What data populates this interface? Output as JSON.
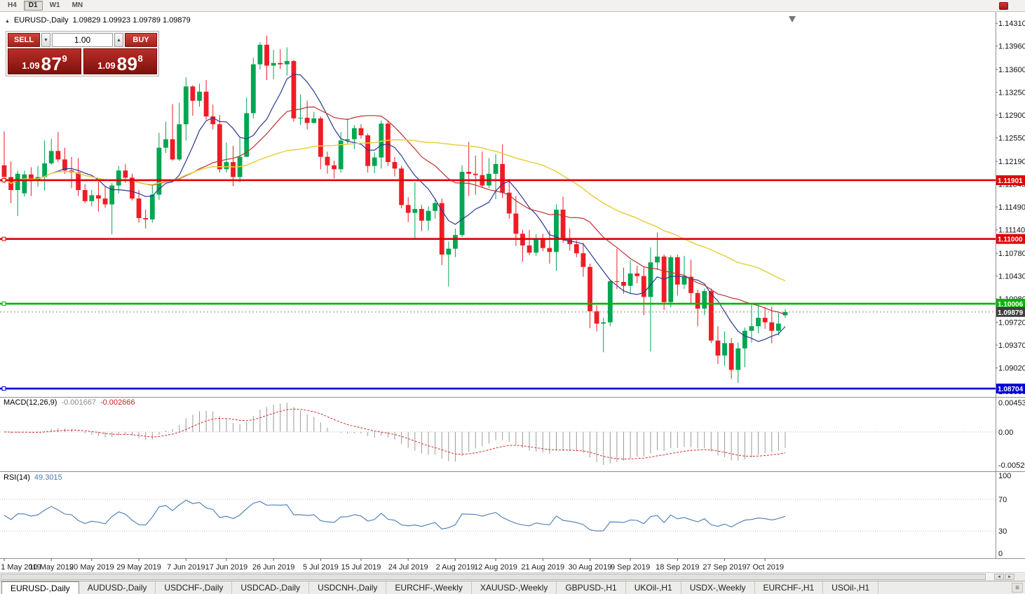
{
  "toolbar": {
    "timeframes": [
      {
        "label": "H4",
        "active": false
      },
      {
        "label": "D1",
        "active": true
      },
      {
        "label": "W1",
        "active": false
      },
      {
        "label": "MN",
        "active": false
      }
    ]
  },
  "chart": {
    "title_symbol": "EURUSD-,Daily",
    "ohlc_display": "1.09829 1.09923 1.09789 1.09879",
    "open": "1.09829",
    "high": "1.09923",
    "low": "1.09789",
    "close": "1.09879"
  },
  "trade_panel": {
    "sell_label": "SELL",
    "buy_label": "BUY",
    "volume": "1.00",
    "sell_price_int": "1.09",
    "sell_price_pips": "87",
    "sell_price_point": "9",
    "buy_price_int": "1.09",
    "buy_price_pips": "89",
    "buy_price_point": "8"
  },
  "macd_panel": {
    "label": "MACD(12,26,9)",
    "value": "-0.001667",
    "signal": "-0.002666",
    "axis": [
      "0.004536",
      "0.00",
      "-0.005205"
    ]
  },
  "rsi_panel": {
    "label": "RSI(14)",
    "value": "49.3015",
    "axis": [
      "100",
      "70",
      "30",
      "0"
    ]
  },
  "icons": {
    "panel_toggle": "▲",
    "volume_down": "▼",
    "volume_up": "▲",
    "left": "◄",
    "right": "►",
    "grip": "≡"
  },
  "tabs": [
    {
      "label": "EURUSD-,Daily",
      "active": true
    },
    {
      "label": "AUDUSD-,Daily",
      "active": false
    },
    {
      "label": "USDCHF-,Daily",
      "active": false
    },
    {
      "label": "USDCAD-,Daily",
      "active": false
    },
    {
      "label": "USDCNH-,Daily",
      "active": false
    },
    {
      "label": "EURCHF-,Weekly",
      "active": false
    },
    {
      "label": "XAUUSD-,Weekly",
      "active": false
    },
    {
      "label": "GBPUSD-,H1",
      "active": false
    },
    {
      "label": "UKOil-,H1",
      "active": false
    },
    {
      "label": "USDX-,Weekly",
      "active": false
    },
    {
      "label": "EURCHF-,H1",
      "active": false
    },
    {
      "label": "USOil-,H1",
      "active": false
    }
  ],
  "chart_data": {
    "type": "candlestick",
    "symbol": "EURUSD-",
    "timeframe": "Daily",
    "ylim": [
      1.08575,
      1.14484
    ],
    "colors": {
      "bull": "#00a651",
      "bear": "#ee1c25"
    },
    "price_axis_ticks": [
      1.1431,
      1.1396,
      1.136,
      1.1325,
      1.129,
      1.1255,
      1.1219,
      1.1184,
      1.1149,
      1.1114,
      1.1078,
      1.1043,
      1.1008,
      1.0972,
      1.0937,
      1.0902,
      1.0866
    ],
    "hlines": [
      {
        "price": 1.11901,
        "label": "1.11901",
        "color": "#e00000"
      },
      {
        "price": 1.11,
        "label": "1.11000",
        "color": "#e00000"
      },
      {
        "price": 1.10006,
        "label": "1.10006",
        "color": "#00b400"
      },
      {
        "price": 1.08704,
        "label": "1.08704",
        "color": "#0000d8"
      }
    ],
    "current_price": {
      "price": 1.09879,
      "label": "1.09879",
      "box_color": "#3f3f3f"
    },
    "moving_averages": [
      {
        "period": 8,
        "color": "#2a3990",
        "width": 1.2
      },
      {
        "period": 20,
        "color": "#c03030",
        "width": 1.2
      },
      {
        "period": 45,
        "color": "#e9cf3e",
        "width": 1.5
      }
    ],
    "indicators": {
      "macd": {
        "fast": 12,
        "slow": 26,
        "signal_period": 9,
        "histogram_color": "#9a9a9a",
        "signal_color": "#d22f2f"
      },
      "rsi": {
        "period": 14,
        "color": "#4a7ab5",
        "levels": [
          30,
          70
        ]
      }
    },
    "x_ticks": [
      {
        "label": "1 May 2019",
        "bar": 0
      },
      {
        "label": "10 May 2019",
        "bar": 7
      },
      {
        "label": "20 May 2019",
        "bar": 13
      },
      {
        "label": "29 May 2019",
        "bar": 20
      },
      {
        "label": "7 Jun 2019",
        "bar": 27
      },
      {
        "label": "17 Jun 2019",
        "bar": 33
      },
      {
        "label": "26 Jun 2019",
        "bar": 40
      },
      {
        "label": "5 Jul 2019",
        "bar": 47
      },
      {
        "label": "15 Jul 2019",
        "bar": 53
      },
      {
        "label": "24 Jul 2019",
        "bar": 60
      },
      {
        "label": "2 Aug 2019",
        "bar": 67
      },
      {
        "label": "12 Aug 2019",
        "bar": 73
      },
      {
        "label": "21 Aug 2019",
        "bar": 80
      },
      {
        "label": "30 Aug 2019",
        "bar": 87
      },
      {
        "label": "9 Sep 2019",
        "bar": 93
      },
      {
        "label": "18 Sep 2019",
        "bar": 100
      },
      {
        "label": "27 Sep 2019",
        "bar": 107
      },
      {
        "label": "7 Oct 2019",
        "bar": 113
      }
    ],
    "candles": [
      [
        1.1213,
        1.1265,
        1.1186,
        1.1195
      ],
      [
        1.1195,
        1.1219,
        1.1155,
        1.1175
      ],
      [
        1.1175,
        1.1205,
        1.1135,
        1.12
      ],
      [
        1.117,
        1.1205,
        1.1165,
        1.1199
      ],
      [
        1.1199,
        1.121,
        1.1166,
        1.119
      ],
      [
        1.119,
        1.1212,
        1.118,
        1.1195
      ],
      [
        1.1195,
        1.1251,
        1.1174,
        1.1216
      ],
      [
        1.1216,
        1.1254,
        1.1214,
        1.1235
      ],
      [
        1.1235,
        1.1264,
        1.1218,
        1.1222
      ],
      [
        1.1222,
        1.124,
        1.12,
        1.1205
      ],
      [
        1.1205,
        1.1226,
        1.1178,
        1.1202
      ],
      [
        1.1202,
        1.1224,
        1.1166,
        1.1175
      ],
      [
        1.1175,
        1.1184,
        1.1155,
        1.1158
      ],
      [
        1.1158,
        1.1175,
        1.115,
        1.1167
      ],
      [
        1.1167,
        1.1188,
        1.1142,
        1.1162
      ],
      [
        1.1162,
        1.118,
        1.1148,
        1.1153
      ],
      [
        1.1153,
        1.1186,
        1.1107,
        1.1182
      ],
      [
        1.1182,
        1.1212,
        1.117,
        1.1205
      ],
      [
        1.1205,
        1.1215,
        1.1186,
        1.1194
      ],
      [
        1.1194,
        1.12,
        1.1159,
        1.1162
      ],
      [
        1.1162,
        1.1175,
        1.1125,
        1.1132
      ],
      [
        1.1132,
        1.1145,
        1.1116,
        1.113
      ],
      [
        1.113,
        1.1182,
        1.1125,
        1.1168
      ],
      [
        1.1168,
        1.1263,
        1.116,
        1.124
      ],
      [
        1.124,
        1.128,
        1.1232,
        1.1253
      ],
      [
        1.1253,
        1.1307,
        1.122,
        1.1222
      ],
      [
        1.1222,
        1.1309,
        1.122,
        1.1276
      ],
      [
        1.1276,
        1.1348,
        1.1251,
        1.1334
      ],
      [
        1.1334,
        1.1336,
        1.1289,
        1.1312
      ],
      [
        1.1312,
        1.1338,
        1.1303,
        1.1326
      ],
      [
        1.1326,
        1.1344,
        1.1283,
        1.1288
      ],
      [
        1.1288,
        1.1306,
        1.1268,
        1.1276
      ],
      [
        1.1276,
        1.129,
        1.1202,
        1.1207
      ],
      [
        1.1207,
        1.1248,
        1.1202,
        1.1218
      ],
      [
        1.1218,
        1.1243,
        1.1181,
        1.1195
      ],
      [
        1.1195,
        1.1255,
        1.1187,
        1.1226
      ],
      [
        1.1226,
        1.1317,
        1.1226,
        1.1293
      ],
      [
        1.1293,
        1.1378,
        1.1285,
        1.1368
      ],
      [
        1.1368,
        1.1402,
        1.136,
        1.1398
      ],
      [
        1.1398,
        1.1412,
        1.1344,
        1.1366
      ],
      [
        1.1366,
        1.139,
        1.1345,
        1.137
      ],
      [
        1.137,
        1.1391,
        1.1361,
        1.1368
      ],
      [
        1.1368,
        1.1394,
        1.1351,
        1.1373
      ],
      [
        1.1373,
        1.1375,
        1.128,
        1.1285
      ],
      [
        1.1285,
        1.1322,
        1.1275,
        1.1286
      ],
      [
        1.1286,
        1.1312,
        1.1268,
        1.1278
      ],
      [
        1.1278,
        1.1295,
        1.1277,
        1.1285
      ],
      [
        1.1285,
        1.1288,
        1.1207,
        1.1226
      ],
      [
        1.1226,
        1.1234,
        1.12,
        1.1213
      ],
      [
        1.1213,
        1.122,
        1.1193,
        1.1207
      ],
      [
        1.1207,
        1.1264,
        1.1202,
        1.1251
      ],
      [
        1.1251,
        1.1285,
        1.1245,
        1.1253
      ],
      [
        1.1253,
        1.1275,
        1.1238,
        1.127
      ],
      [
        1.127,
        1.1276,
        1.1254,
        1.1259
      ],
      [
        1.1259,
        1.1262,
        1.1202,
        1.1212
      ],
      [
        1.1212,
        1.1233,
        1.1201,
        1.1225
      ],
      [
        1.1225,
        1.1282,
        1.1208,
        1.1277
      ],
      [
        1.1277,
        1.1282,
        1.1212,
        1.1218
      ],
      [
        1.1218,
        1.1226,
        1.1196,
        1.1208
      ],
      [
        1.1208,
        1.1212,
        1.1147,
        1.1152
      ],
      [
        1.1152,
        1.1164,
        1.1126,
        1.114
      ],
      [
        1.114,
        1.1187,
        1.1101,
        1.1146
      ],
      [
        1.1146,
        1.1152,
        1.1112,
        1.1128
      ],
      [
        1.1128,
        1.115,
        1.1113,
        1.1143
      ],
      [
        1.1143,
        1.1162,
        1.1131,
        1.1155
      ],
      [
        1.1155,
        1.1162,
        1.106,
        1.1076
      ],
      [
        1.1076,
        1.1096,
        1.1027,
        1.1085
      ],
      [
        1.1085,
        1.1116,
        1.1072,
        1.1106
      ],
      [
        1.1106,
        1.1213,
        1.1103,
        1.1203
      ],
      [
        1.1203,
        1.1249,
        1.1166,
        1.12
      ],
      [
        1.12,
        1.1228,
        1.1168,
        1.1198
      ],
      [
        1.1198,
        1.1234,
        1.1178,
        1.1182
      ],
      [
        1.1182,
        1.1224,
        1.1178,
        1.12
      ],
      [
        1.12,
        1.123,
        1.1161,
        1.1215
      ],
      [
        1.1215,
        1.1245,
        1.1163,
        1.1171
      ],
      [
        1.1171,
        1.1192,
        1.1131,
        1.1139
      ],
      [
        1.1139,
        1.1166,
        1.1089,
        1.1108
      ],
      [
        1.1108,
        1.1114,
        1.1065,
        1.109
      ],
      [
        1.109,
        1.1114,
        1.1075,
        1.1079
      ],
      [
        1.1079,
        1.1107,
        1.1074,
        1.1099
      ],
      [
        1.1099,
        1.1108,
        1.1081,
        1.1086
      ],
      [
        1.1086,
        1.1113,
        1.1062,
        1.108
      ],
      [
        1.108,
        1.1153,
        1.1051,
        1.1145
      ],
      [
        1.1145,
        1.1165,
        1.1094,
        1.1101
      ],
      [
        1.1101,
        1.1116,
        1.1082,
        1.1092
      ],
      [
        1.1092,
        1.1098,
        1.1072,
        1.1078
      ],
      [
        1.1078,
        1.1094,
        1.1042,
        1.1057
      ],
      [
        1.1057,
        1.1062,
        1.0963,
        1.0989
      ],
      [
        1.0989,
        1.0998,
        1.0958,
        1.097
      ],
      [
        1.097,
        1.0979,
        1.0926,
        1.0972
      ],
      [
        1.0972,
        1.1038,
        1.0966,
        1.1035
      ],
      [
        1.1035,
        1.1085,
        1.1023,
        1.1034
      ],
      [
        1.1034,
        1.1056,
        1.1016,
        1.1028
      ],
      [
        1.1028,
        1.1067,
        1.1015,
        1.1047
      ],
      [
        1.1047,
        1.1059,
        1.1032,
        1.1043
      ],
      [
        1.1043,
        1.1056,
        1.0983,
        1.1011
      ],
      [
        1.1011,
        1.1087,
        1.0927,
        1.1064
      ],
      [
        1.1064,
        1.111,
        1.1052,
        1.1073
      ],
      [
        1.1073,
        1.1076,
        1.0991,
        1.1003
      ],
      [
        1.1003,
        1.1075,
        1.0995,
        1.1072
      ],
      [
        1.1072,
        1.1076,
        1.1013,
        1.103
      ],
      [
        1.103,
        1.1074,
        1.1023,
        1.1042
      ],
      [
        1.1042,
        1.1068,
        1.1,
        1.1017
      ],
      [
        1.1017,
        1.1022,
        1.0966,
        1.0993
      ],
      [
        1.0993,
        1.1024,
        1.0983,
        1.102
      ],
      [
        1.102,
        1.1024,
        1.094,
        1.0944
      ],
      [
        1.0944,
        1.0966,
        1.0908,
        1.0921
      ],
      [
        1.0921,
        1.0958,
        1.0905,
        1.094
      ],
      [
        1.094,
        1.0948,
        1.0885,
        1.0899
      ],
      [
        1.0899,
        1.0941,
        1.0879,
        1.0932
      ],
      [
        1.0932,
        1.0964,
        1.0903,
        1.0959
      ],
      [
        1.0959,
        1.0999,
        1.0941,
        1.0966
      ],
      [
        1.0966,
        1.0999,
        1.0955,
        1.0979
      ],
      [
        1.0979,
        1.0996,
        1.0962,
        1.0972
      ],
      [
        1.0972,
        1.0996,
        1.094,
        1.0959
      ],
      [
        1.0959,
        1.0987,
        1.0952,
        1.097
      ],
      [
        1.09829,
        1.09923,
        1.09789,
        1.09879
      ]
    ]
  }
}
